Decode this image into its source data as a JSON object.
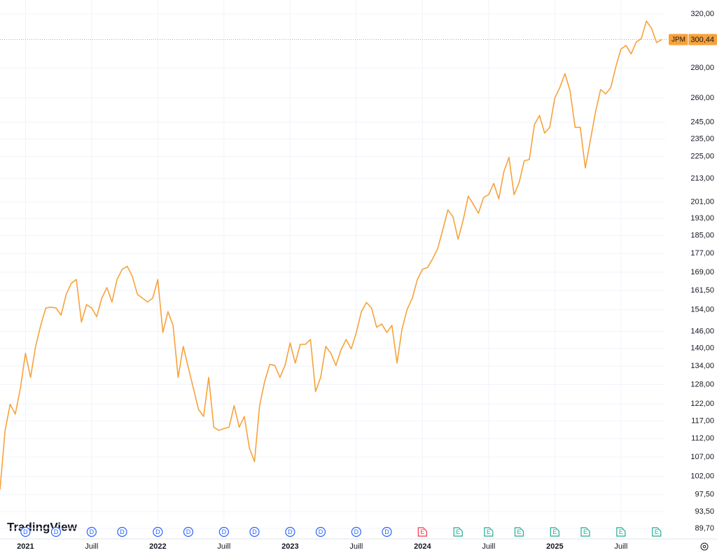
{
  "chart_data": {
    "type": "line",
    "log_scale": true,
    "grid": true,
    "watermark": "TradingView",
    "symbol": "JPM",
    "last_price": {
      "value": 300.44,
      "label": "300,44"
    },
    "ylim": [
      87.4,
      331.3
    ],
    "yticks": [
      {
        "value": 320,
        "label": "320,00"
      },
      {
        "value": 280,
        "label": "280,00"
      },
      {
        "value": 260,
        "label": "260,00"
      },
      {
        "value": 245,
        "label": "245,00"
      },
      {
        "value": 235,
        "label": "235,00"
      },
      {
        "value": 225,
        "label": "225,00"
      },
      {
        "value": 213,
        "label": "213,00"
      },
      {
        "value": 201,
        "label": "201,00"
      },
      {
        "value": 193,
        "label": "193,00"
      },
      {
        "value": 185,
        "label": "185,00"
      },
      {
        "value": 177,
        "label": "177,00"
      },
      {
        "value": 169,
        "label": "169,00"
      },
      {
        "value": 161.5,
        "label": "161,50"
      },
      {
        "value": 154,
        "label": "154,00"
      },
      {
        "value": 146,
        "label": "146,00"
      },
      {
        "value": 140,
        "label": "140,00"
      },
      {
        "value": 134,
        "label": "134,00"
      },
      {
        "value": 128,
        "label": "128,00"
      },
      {
        "value": 122,
        "label": "122,00"
      },
      {
        "value": 117,
        "label": "117,00"
      },
      {
        "value": 112,
        "label": "112,00"
      },
      {
        "value": 107,
        "label": "107,00"
      },
      {
        "value": 102,
        "label": "102,00"
      },
      {
        "value": 97.5,
        "label": "97,50"
      },
      {
        "value": 93.5,
        "label": "93,50"
      },
      {
        "value": 89.7,
        "label": "89,70"
      }
    ],
    "categories": [
      null,
      null,
      null,
      null,
      null,
      "2021",
      null,
      null,
      null,
      null,
      null,
      null,
      null,
      null,
      null,
      null,
      null,
      null,
      "Juill",
      null,
      null,
      null,
      null,
      null,
      null,
      null,
      null,
      null,
      null,
      null,
      null,
      "2022",
      null,
      null,
      null,
      null,
      null,
      null,
      null,
      null,
      null,
      null,
      null,
      null,
      "Juill",
      null,
      null,
      null,
      null,
      null,
      null,
      null,
      null,
      null,
      null,
      null,
      null,
      "2023",
      null,
      null,
      null,
      null,
      null,
      null,
      null,
      null,
      null,
      null,
      null,
      null,
      "Juill",
      null,
      null,
      null,
      null,
      null,
      null,
      null,
      null,
      null,
      null,
      null,
      null,
      "2024",
      null,
      null,
      null,
      null,
      null,
      null,
      null,
      null,
      null,
      null,
      null,
      null,
      "Juill",
      null,
      null,
      null,
      null,
      null,
      null,
      null,
      null,
      null,
      null,
      null,
      null,
      "2025",
      null,
      null,
      null,
      null,
      null,
      null,
      null,
      null,
      null,
      null,
      null,
      null,
      "Juill",
      null,
      null,
      null,
      null,
      null,
      null,
      null,
      null
    ],
    "series": [
      {
        "name": "JPM",
        "color": "#f7a23b",
        "values": [
          98.7,
          114.3,
          121.9,
          119,
          126.8,
          138.3,
          130.3,
          140.7,
          148.2,
          154.7,
          155,
          154.7,
          152,
          160,
          164.4,
          166,
          149.4,
          156,
          154.7,
          151.4,
          158.5,
          162.7,
          157,
          166,
          170.2,
          171.5,
          167.3,
          160,
          158.5,
          157,
          158.5,
          166,
          145.6,
          153.3,
          148.2,
          130.3,
          140.7,
          133.5,
          126.8,
          120.4,
          118.3,
          130.3,
          115.2,
          114.3,
          114.8,
          115.2,
          121.5,
          115.2,
          118.3,
          109.4,
          105.8,
          121.5,
          129,
          134.6,
          134.2,
          130.3,
          134.2,
          141.9,
          135,
          141.4,
          141.4,
          143.1,
          125.8,
          130.3,
          140.7,
          138.3,
          134.2,
          139.5,
          143.1,
          139.8,
          145.6,
          153.3,
          156.8,
          154.7,
          147.5,
          148.7,
          145.6,
          148.2,
          135,
          147,
          154.2,
          158.5,
          166,
          170.2,
          171,
          174.7,
          179.2,
          187.8,
          197.2,
          193.8,
          183.4,
          192.2,
          204,
          199.9,
          195.5,
          203.3,
          204.7,
          210.5,
          202.6,
          216.8,
          224.5,
          204.7,
          211,
          222.6,
          223.3,
          243.5,
          249,
          238.4,
          241.8,
          260,
          266.9,
          276.2,
          264.6,
          241.8,
          241.8,
          218.7,
          234.4,
          251.2,
          265.5,
          262.6,
          266.9,
          281,
          293.5,
          296,
          290,
          298.6,
          301.2,
          314.5,
          308.9,
          298.2,
          300.44
        ]
      }
    ],
    "event_markers": [
      null,
      null,
      null,
      null,
      null,
      {
        "label": "D",
        "color": "#2962ff"
      },
      null,
      null,
      null,
      null,
      null,
      {
        "label": "D",
        "color": "#2962ff"
      },
      null,
      null,
      null,
      null,
      null,
      null,
      {
        "label": "D",
        "color": "#2962ff"
      },
      null,
      null,
      null,
      null,
      null,
      {
        "label": "D",
        "color": "#2962ff"
      },
      null,
      null,
      null,
      null,
      null,
      null,
      {
        "label": "D",
        "color": "#2962ff"
      },
      null,
      null,
      null,
      null,
      null,
      {
        "label": "D",
        "color": "#2962ff"
      },
      null,
      null,
      null,
      null,
      null,
      null,
      {
        "label": "D",
        "color": "#2962ff"
      },
      null,
      null,
      null,
      null,
      null,
      {
        "label": "D",
        "color": "#2962ff"
      },
      null,
      null,
      null,
      null,
      null,
      null,
      {
        "label": "D",
        "color": "#2962ff"
      },
      null,
      null,
      null,
      null,
      null,
      {
        "label": "D",
        "color": "#2962ff"
      },
      null,
      null,
      null,
      null,
      null,
      null,
      {
        "label": "D",
        "color": "#2962ff"
      },
      null,
      null,
      null,
      null,
      null,
      {
        "label": "D",
        "color": "#2962ff"
      },
      null,
      null,
      null,
      null,
      null,
      null,
      {
        "label": "E",
        "color": "#f23645"
      },
      null,
      null,
      null,
      null,
      null,
      null,
      {
        "label": "E",
        "color": "#22ab94"
      },
      null,
      null,
      null,
      null,
      null,
      {
        "label": "E",
        "color": "#22ab94"
      },
      null,
      null,
      null,
      null,
      null,
      {
        "label": "E",
        "color": "#22ab94"
      },
      null,
      null,
      null,
      null,
      null,
      null,
      {
        "label": "E",
        "color": "#22ab94"
      },
      null,
      null,
      null,
      null,
      null,
      {
        "label": "E",
        "color": "#22ab94"
      },
      null,
      null,
      null,
      null,
      null,
      null,
      {
        "label": "E",
        "color": "#22ab94"
      },
      null,
      null,
      null,
      null,
      null,
      null,
      {
        "label": "E",
        "color": "#22ab94"
      },
      null
    ]
  }
}
